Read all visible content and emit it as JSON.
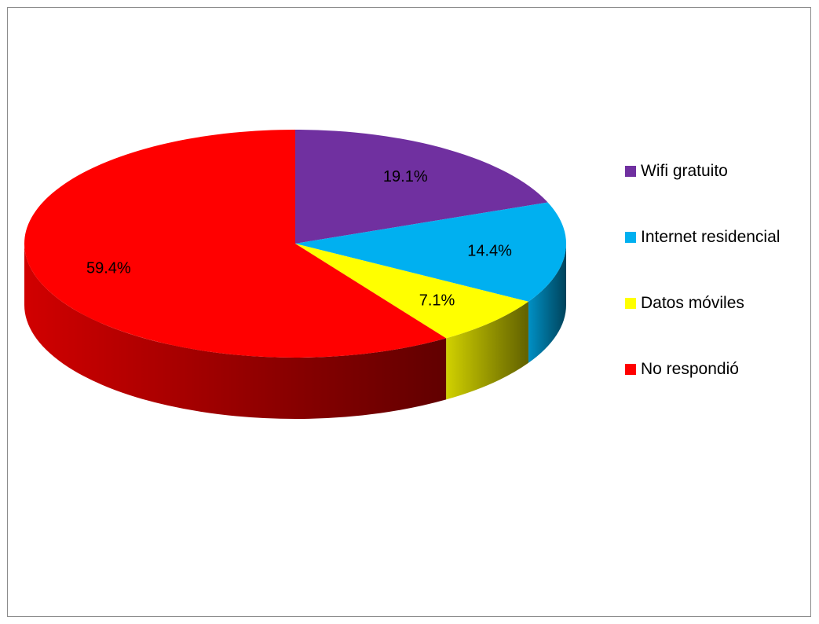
{
  "chart_data": {
    "type": "pie",
    "categories": [
      "Wifi gratuito",
      "Internet residencial",
      "Datos móviles",
      "No respondió"
    ],
    "values": [
      19.1,
      14.4,
      7.1,
      59.4
    ],
    "labels": [
      "19.1%",
      "14.4%",
      "7.1%",
      "59.4%"
    ],
    "colors": [
      "#7030a0",
      "#00b0f0",
      "#ffff00",
      "#ff0000"
    ],
    "title": "",
    "legend_position": "right",
    "style": "3d-pie"
  }
}
